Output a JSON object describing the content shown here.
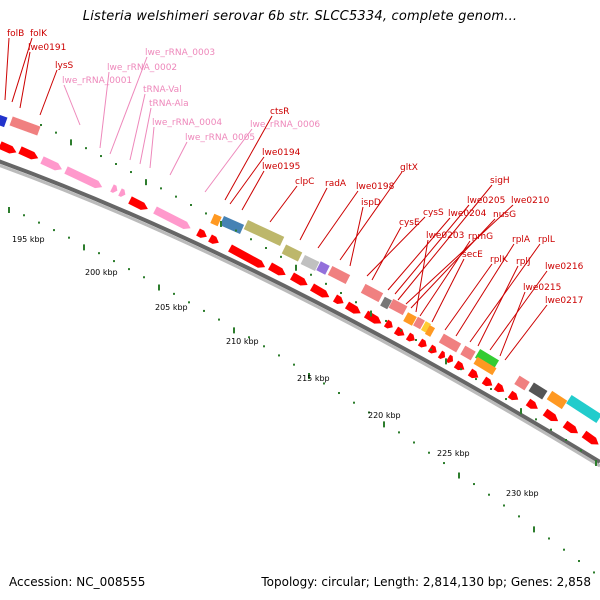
{
  "title": "Listeria welshimeri serovar 6b str. SLCC5334, complete genom...",
  "footer": {
    "accession": "Accession: NC_008555",
    "stats": "Topology: circular; Length: 2,814,130 bp; Genes: 2,858"
  },
  "colors": {
    "cds_arrow": "#ff0000",
    "rna_arrow": "#ff99cc",
    "gene_label": "#cc0000",
    "rna_label": "#ee88bb",
    "tick": "#2d7d2d",
    "ruler_text": "#000000",
    "backbone": "#999999"
  },
  "ruler": {
    "ticks": [
      "195 kbp",
      "200 kbp",
      "205 kbp",
      "210 kbp",
      "215 kbp",
      "220 kbp",
      "225 kbp",
      "230 kbp"
    ]
  },
  "gene_labels": [
    {
      "text": "folB",
      "type": "gene"
    },
    {
      "text": "folK",
      "type": "gene"
    },
    {
      "text": "lwe0191",
      "type": "gene"
    },
    {
      "text": "lysS",
      "type": "gene"
    },
    {
      "text": "lwe_rRNA_0001",
      "type": "rna"
    },
    {
      "text": "lwe_rRNA_0002",
      "type": "rna"
    },
    {
      "text": "lwe_rRNA_0003",
      "type": "rna"
    },
    {
      "text": "tRNA-Val",
      "type": "rna"
    },
    {
      "text": "tRNA-Ala",
      "type": "rna"
    },
    {
      "text": "lwe_rRNA_0004",
      "type": "rna"
    },
    {
      "text": "lwe_rRNA_0005",
      "type": "rna"
    },
    {
      "text": "lwe_rRNA_0006",
      "type": "rna"
    },
    {
      "text": "ctsR",
      "type": "gene"
    },
    {
      "text": "lwe0194",
      "type": "gene"
    },
    {
      "text": "lwe0195",
      "type": "gene"
    },
    {
      "text": "clpC",
      "type": "gene"
    },
    {
      "text": "radA",
      "type": "gene"
    },
    {
      "text": "lwe0198",
      "type": "gene"
    },
    {
      "text": "gltX",
      "type": "gene"
    },
    {
      "text": "ispD",
      "type": "gene"
    },
    {
      "text": "cysS",
      "type": "gene"
    },
    {
      "text": "cysE",
      "type": "gene"
    },
    {
      "text": "lwe0204",
      "type": "gene"
    },
    {
      "text": "lwe0205",
      "type": "gene"
    },
    {
      "text": "sigH",
      "type": "gene"
    },
    {
      "text": "lwe0210",
      "type": "gene"
    },
    {
      "text": "nusG",
      "type": "gene"
    },
    {
      "text": "lwe0203",
      "type": "gene"
    },
    {
      "text": "rpmG",
      "type": "gene"
    },
    {
      "text": "secE",
      "type": "gene"
    },
    {
      "text": "rplK",
      "type": "gene"
    },
    {
      "text": "rplA",
      "type": "gene"
    },
    {
      "text": "rplL",
      "type": "gene"
    },
    {
      "text": "rplJ",
      "type": "gene"
    },
    {
      "text": "lwe0216",
      "type": "gene"
    },
    {
      "text": "lwe0215",
      "type": "gene"
    },
    {
      "text": "lwe0217",
      "type": "gene"
    }
  ]
}
